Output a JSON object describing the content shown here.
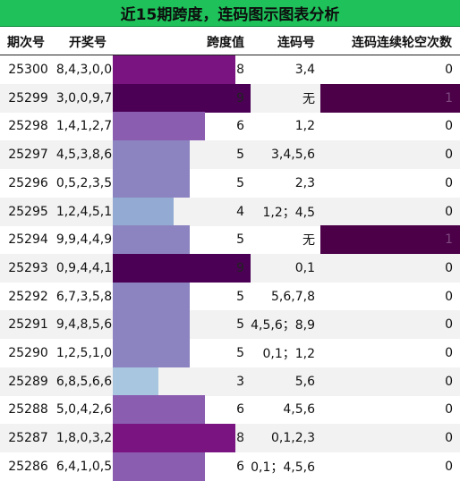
{
  "title": "近15期跨度，连码图示图表分析",
  "headers": {
    "period": "期次号",
    "draw": "开奖号",
    "span": "跨度值",
    "lianma": "连码号",
    "count": "连码连续轮空次数"
  },
  "colors": {
    "title_bg": "#1ec15a",
    "span_3": "#a8c6e0",
    "span_4": "#93abd2",
    "span_5": "#8c84c0",
    "span_6": "#8a5db0",
    "span_8": "#7a1480",
    "span_9": "#4b0055",
    "count_1": "#4b0048"
  },
  "chart_data": {
    "type": "table",
    "columns": [
      "期次号",
      "开奖号",
      "跨度值",
      "连码号",
      "连码连续轮空次数"
    ],
    "rows": [
      {
        "period": "25300",
        "draw": "8,4,3,0,0",
        "span": 8,
        "lianma": "3,4",
        "count": 0
      },
      {
        "period": "25299",
        "draw": "3,0,0,9,7",
        "span": 9,
        "lianma": "无",
        "count": 1
      },
      {
        "period": "25298",
        "draw": "1,4,1,2,7",
        "span": 6,
        "lianma": "1,2",
        "count": 0
      },
      {
        "period": "25297",
        "draw": "4,5,3,8,6",
        "span": 5,
        "lianma": "3,4,5,6",
        "count": 0
      },
      {
        "period": "25296",
        "draw": "0,5,2,3,5",
        "span": 5,
        "lianma": "2,3",
        "count": 0
      },
      {
        "period": "25295",
        "draw": "1,2,4,5,1",
        "span": 4,
        "lianma": "1,2；4,5",
        "count": 0
      },
      {
        "period": "25294",
        "draw": "9,9,4,4,9",
        "span": 5,
        "lianma": "无",
        "count": 1
      },
      {
        "period": "25293",
        "draw": "0,9,4,4,1",
        "span": 9,
        "lianma": "0,1",
        "count": 0
      },
      {
        "period": "25292",
        "draw": "6,7,3,5,8",
        "span": 5,
        "lianma": "5,6,7,8",
        "count": 0
      },
      {
        "period": "25291",
        "draw": "9,4,8,5,6",
        "span": 5,
        "lianma": "4,5,6；8,9",
        "count": 0
      },
      {
        "period": "25290",
        "draw": "1,2,5,1,0",
        "span": 5,
        "lianma": "0,1；1,2",
        "count": 0
      },
      {
        "period": "25289",
        "draw": "6,8,5,6,6",
        "span": 3,
        "lianma": "5,6",
        "count": 0
      },
      {
        "period": "25288",
        "draw": "5,0,4,2,6",
        "span": 6,
        "lianma": "4,5,6",
        "count": 0
      },
      {
        "period": "25287",
        "draw": "1,8,0,3,2",
        "span": 8,
        "lianma": "0,1,2,3",
        "count": 0
      },
      {
        "period": "25286",
        "draw": "6,4,1,0,5",
        "span": 6,
        "lianma": "0,1；4,5,6",
        "count": 0
      }
    ],
    "span_max": 9
  }
}
